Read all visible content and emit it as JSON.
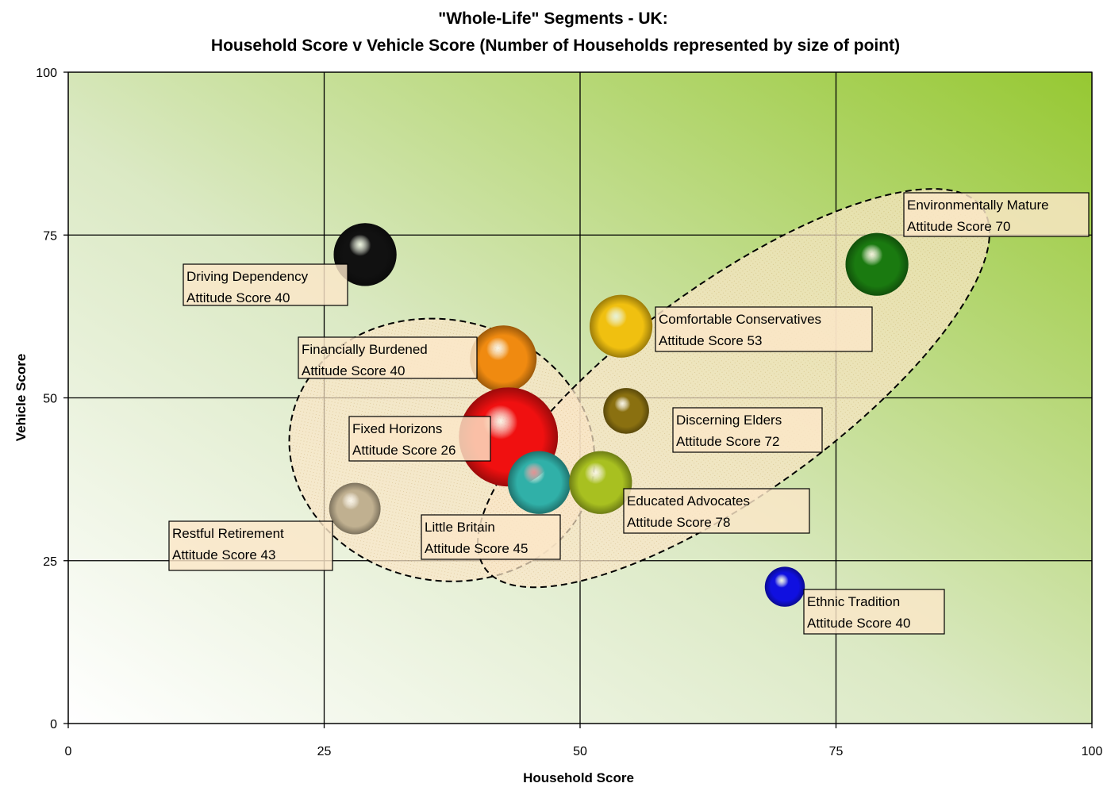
{
  "chart_data": {
    "type": "scatter",
    "title": "\"Whole-Life\" Segments - UK:",
    "subtitle": "Household Score v Vehicle Score (Number of Households represented by size of point)",
    "xlabel": "Household Score",
    "ylabel": "Vehicle Score",
    "xlim": [
      0,
      100
    ],
    "ylim": [
      0,
      100
    ],
    "xticks": [
      "0",
      "25",
      "50",
      "75",
      "100"
    ],
    "yticks": [
      "0",
      "25",
      "50",
      "75",
      "100"
    ],
    "grid": true,
    "legend": "none",
    "background": "gradient white (bottom-left) to green (top-right)",
    "points": [
      {
        "name": "Driving Dependency",
        "line2": "Attitude Score 40",
        "x": 29,
        "y": 72,
        "size": 33,
        "color": "#111111"
      },
      {
        "name": "Financially Burdened",
        "line2": "Attitude Score 40",
        "x": 42.5,
        "y": 56,
        "size": 35,
        "color": "#f08a10"
      },
      {
        "name": "Fixed Horizons",
        "line2": "Attitude Score 26",
        "x": 43,
        "y": 44,
        "size": 52,
        "color": "#f01010"
      },
      {
        "name": "Comfortable Conservatives",
        "line2": "Attitude Score 53",
        "x": 54,
        "y": 61,
        "size": 33,
        "color": "#f0c010"
      },
      {
        "name": "Discerning Elders",
        "line2": "Attitude Score 72",
        "x": 54.5,
        "y": 48,
        "size": 24,
        "color": "#8a7010"
      },
      {
        "name": "Little Britain",
        "line2": "Attitude Score 45",
        "x": 46,
        "y": 37,
        "size": 33,
        "color": "#30b0a8"
      },
      {
        "name": "Educated Advocates",
        "line2": "Attitude Score 78",
        "x": 52,
        "y": 37,
        "size": 33,
        "color": "#a8c020"
      },
      {
        "name": "Restful Retirement",
        "line2": "Attitude Score 43",
        "x": 28,
        "y": 33,
        "size": 27,
        "color": "#c0b090"
      },
      {
        "name": "Environmentally Mature",
        "line2": "Attitude Score 70",
        "x": 79,
        "y": 70.5,
        "size": 33,
        "color": "#1a7a10"
      },
      {
        "name": "Ethnic Tradition",
        "line2": "Attitude Score 40",
        "x": 70,
        "y": 21,
        "size": 21,
        "color": "#1010e0"
      }
    ],
    "clusters": [
      {
        "cx": 36.5,
        "cy": 42,
        "rx": 15,
        "ry": 20,
        "rotate": 12
      },
      {
        "cx": 65,
        "cy": 51.5,
        "rx": 30,
        "ry": 16,
        "rotate": -36
      }
    ]
  }
}
